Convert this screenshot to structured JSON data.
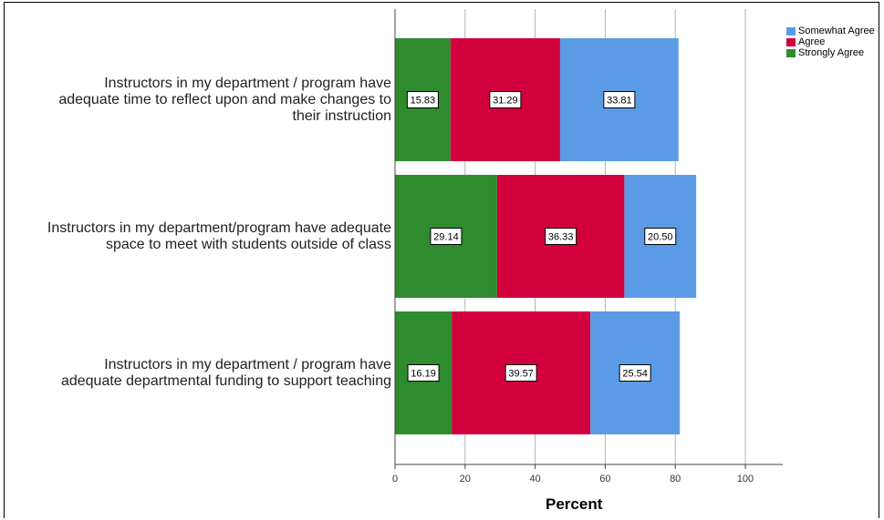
{
  "chart_data": {
    "type": "bar",
    "orientation": "horizontal",
    "stacked": true,
    "categories": [
      "Instructors in my department / program have adequate time to reflect upon and make changes to their instruction",
      "Instructors in my department/program have adequate space to meet with students outside of class",
      "Instructors in my department / program have adequate departmental funding to support teaching"
    ],
    "category_lines": [
      [
        "Instructors in my department / program have",
        "adequate time to reflect upon and make changes to",
        "their instruction"
      ],
      [
        "Instructors in my department/program have adequate",
        "space to meet with students outside of class"
      ],
      [
        "Instructors in my department / program have",
        "adequate departmental funding to support teaching"
      ]
    ],
    "series": [
      {
        "name": "Strongly Agree",
        "color": "#2e8b2e",
        "values": [
          15.83,
          29.14,
          16.19
        ],
        "labels": [
          "15.83",
          "29.14",
          "16.19"
        ]
      },
      {
        "name": "Agree",
        "color": "#d2003c",
        "values": [
          31.29,
          36.33,
          39.57
        ],
        "labels": [
          "31.29",
          "36.33",
          "39.57"
        ]
      },
      {
        "name": "Somewhat Agree",
        "color": "#5b9be6",
        "values": [
          33.81,
          20.5,
          25.54
        ],
        "labels": [
          "33.81",
          "20.50",
          "25.54"
        ]
      }
    ],
    "legend_order": [
      "Somewhat Agree",
      "Agree",
      "Strongly Agree"
    ],
    "xlabel": "Percent",
    "ylabel": "",
    "xlim": [
      0,
      110
    ],
    "xticks": [
      0,
      20,
      40,
      60,
      80,
      100
    ],
    "grid": "vertical",
    "legend_position": "top-right"
  }
}
